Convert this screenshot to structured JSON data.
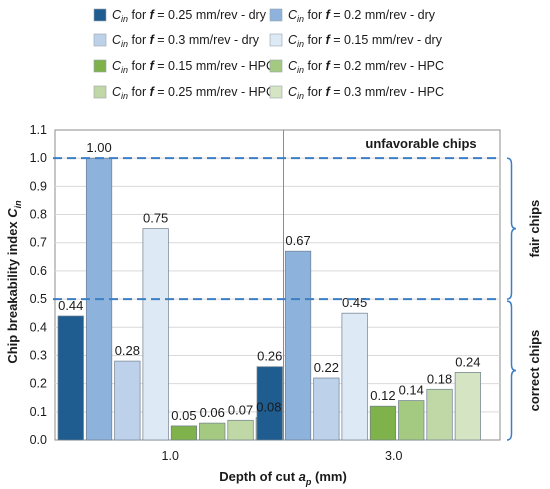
{
  "legend": [
    {
      "sym": "C",
      "sub": "in",
      "mid": " for ",
      "f": "f",
      "rest": " = 0.25 mm/rev - dry",
      "color": "#1f5c8f"
    },
    {
      "sym": "C",
      "sub": "in",
      "mid": " for ",
      "f": "f",
      "rest": " = 0.2 mm/rev - dry",
      "color": "#8db3dd"
    },
    {
      "sym": "C",
      "sub": "in",
      "mid": " for ",
      "f": "f",
      "rest": " = 0.3 mm/rev - dry",
      "color": "#bdd2ea"
    },
    {
      "sym": "C",
      "sub": "in",
      "mid": " for ",
      "f": "f",
      "rest": " = 0.15 mm/rev - dry",
      "color": "#dde9f5"
    },
    {
      "sym": "C",
      "sub": "in",
      "mid": " for ",
      "f": "f",
      "rest": " = 0.15 mm/rev - HPC",
      "color": "#7fb24a"
    },
    {
      "sym": "C",
      "sub": "in",
      "mid": " for ",
      "f": "f",
      "rest": " = 0.2 mm/rev - HPC",
      "color": "#a4c981"
    },
    {
      "sym": "C",
      "sub": "in",
      "mid": " for ",
      "f": "f",
      "rest": " = 0.25 mm/rev - HPC",
      "color": "#bfd8a6"
    },
    {
      "sym": "C",
      "sub": "in",
      "mid": " for ",
      "f": "f",
      "rest": " = 0.3 mm/rev - HPC",
      "color": "#d5e5c3"
    }
  ],
  "zone_labels": {
    "unfavorable": "unfavorable  chips",
    "fair": "fair chips",
    "correct": "correct chips"
  },
  "chart_data": {
    "type": "bar",
    "categories": [
      "1.0",
      "3.0"
    ],
    "series": [
      {
        "name": "Cin for f = 0.25 mm/rev - dry",
        "values": [
          0.44,
          0.26
        ],
        "labels": [
          "0.44",
          "0.26"
        ],
        "color": "#1f5c8f"
      },
      {
        "name": "Cin for f = 0.2 mm/rev - dry",
        "values": [
          1.0,
          0.67
        ],
        "labels": [
          "1.00",
          "0.67"
        ],
        "color": "#8db3dd"
      },
      {
        "name": "Cin for f = 0.3 mm/rev - dry",
        "values": [
          0.28,
          0.22
        ],
        "labels": [
          "0.28",
          "0.22"
        ],
        "color": "#bdd2ea"
      },
      {
        "name": "Cin for f = 0.15 mm/rev - dry",
        "values": [
          0.75,
          0.45
        ],
        "labels": [
          "0.75",
          "0.45"
        ],
        "color": "#dde9f5"
      },
      {
        "name": "Cin for f = 0.15 mm/rev - HPC",
        "values": [
          0.05,
          0.12
        ],
        "labels": [
          "0.05",
          "0.12"
        ],
        "color": "#7fb24a"
      },
      {
        "name": "Cin for f = 0.2 mm/rev - HPC",
        "values": [
          0.06,
          0.14
        ],
        "labels": [
          "0.06",
          "0.14"
        ],
        "color": "#a4c981"
      },
      {
        "name": "Cin for f = 0.25 mm/rev - HPC",
        "values": [
          0.07,
          0.18
        ],
        "labels": [
          "0.07",
          "0.18"
        ],
        "color": "#bfd8a6"
      },
      {
        "name": "Cin for f = 0.3 mm/rev - HPC",
        "values": [
          0.08,
          0.24
        ],
        "labels": [
          "0.08",
          "0.24"
        ],
        "color": "#d5e5c3"
      }
    ],
    "ylim": [
      0,
      1.1
    ],
    "yticks": [
      "0.0",
      "0.1",
      "0.2",
      "0.3",
      "0.4",
      "0.5",
      "0.6",
      "0.7",
      "0.8",
      "0.9",
      "1.0",
      "1.1"
    ],
    "ylabel_main": "Chip breakability index ",
    "ylabel_sym": "C",
    "ylabel_sub": "in",
    "xlabel_main": "Depth of cut ",
    "xlabel_sym": "a",
    "xlabel_sub": "p",
    "xlabel_unit": " (mm)",
    "reference_lines": [
      0.5,
      1.0
    ],
    "grid": true,
    "legend_position": "top"
  }
}
